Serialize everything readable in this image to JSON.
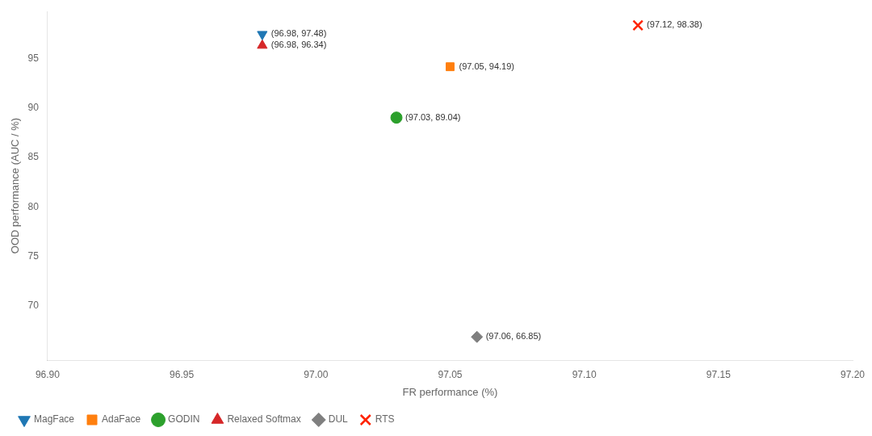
{
  "chart_data": {
    "type": "scatter",
    "xlabel": "FR performance (%)",
    "ylabel": "OOD performance (AUC / %)",
    "series": [
      {
        "name": "MagFace",
        "color": "#1f77b4",
        "marker": "triangle_down",
        "x": [
          96.98
        ],
        "y": [
          97.48
        ]
      },
      {
        "name": "AdaFace",
        "color": "#ff7f0e",
        "marker": "square",
        "x": [
          97.05
        ],
        "y": [
          94.19
        ]
      },
      {
        "name": "GODIN",
        "color": "#2ca02c",
        "marker": "circle",
        "x": [
          97.03
        ],
        "y": [
          89.04
        ]
      },
      {
        "name": "Relaxed Softmax",
        "color": "#d62728",
        "marker": "triangle_up",
        "x": [
          96.98
        ],
        "y": [
          96.34
        ]
      },
      {
        "name": "DUL",
        "color": "#7f7f7f",
        "marker": "diamond",
        "x": [
          97.06
        ],
        "y": [
          66.85
        ]
      },
      {
        "name": "RTS",
        "color": "#ff2200",
        "marker": "x",
        "x": [
          97.12
        ],
        "y": [
          98.38
        ]
      }
    ],
    "annotations": [
      {
        "text": "(96.98, 97.48)",
        "x": 96.98,
        "y": 97.48
      },
      {
        "text": "(97.05, 94.19)",
        "x": 97.05,
        "y": 94.19
      },
      {
        "text": "(97.03, 89.04)",
        "x": 97.03,
        "y": 89.04
      },
      {
        "text": "(96.98, 96.34)",
        "x": 96.98,
        "y": 96.34
      },
      {
        "text": "(97.06, 66.85)",
        "x": 97.06,
        "y": 66.85
      },
      {
        "text": "(97.12, 98.38)",
        "x": 97.12,
        "y": 98.38
      }
    ],
    "xlim": [
      96.9,
      97.2
    ],
    "ylim": [
      64.5,
      99.8
    ],
    "xticks": [
      {
        "value": 96.9,
        "label": "96.90"
      },
      96.95,
      {
        "value": 97.0,
        "label": "97.00"
      },
      97.05,
      {
        "value": 97.1,
        "label": "97.10"
      },
      97.15,
      {
        "value": 97.2,
        "label": "97.20"
      }
    ],
    "yticks": [
      70,
      75,
      80,
      85,
      90,
      95
    ],
    "grid": false,
    "legend": "lower left"
  }
}
